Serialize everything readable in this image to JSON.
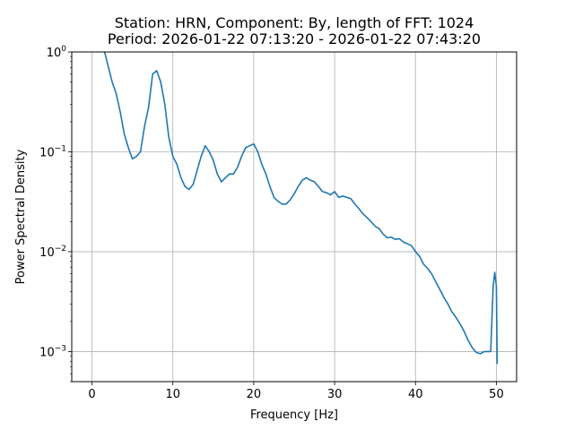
{
  "chart_data": {
    "type": "line",
    "title_line1": "Station: HRN, Component: By, length of FFT: 1024",
    "title_line2": "Period: 2026-01-22 07:13:20 - 2026-01-22 07:43:20",
    "xlabel": "Frequency [Hz]",
    "ylabel": "Power Spectral Density",
    "xlim": [
      -2.5,
      52.5
    ],
    "ylim": [
      0.0005,
      1
    ],
    "yscale": "log",
    "grid": true,
    "x_ticks": [
      {
        "value": 0,
        "label": "0"
      },
      {
        "value": 10,
        "label": "10"
      },
      {
        "value": 20,
        "label": "20"
      },
      {
        "value": 30,
        "label": "30"
      },
      {
        "value": 40,
        "label": "40"
      },
      {
        "value": 50,
        "label": "50"
      }
    ],
    "y_ticks": [
      {
        "value": 1,
        "label": "10^0",
        "base": "10",
        "exp": "0"
      },
      {
        "value": 0.1,
        "label": "10^-1",
        "base": "10",
        "exp": "−1"
      },
      {
        "value": 0.01,
        "label": "10^-2",
        "base": "10",
        "exp": "−2"
      },
      {
        "value": 0.001,
        "label": "10^-3",
        "base": "10",
        "exp": "−3"
      }
    ],
    "line_color": "#1f77b4",
    "series": [
      {
        "x": [
          1.5,
          2.0,
          2.5,
          3.0,
          3.5,
          4.0,
          4.5,
          5.0,
          5.5,
          6.0,
          6.5,
          7.0,
          7.5,
          8.0,
          8.5,
          9.0,
          9.5,
          10.0,
          10.5,
          11.0,
          11.5,
          12.0,
          12.5,
          13.0,
          13.5,
          14.0,
          14.5,
          15.0,
          15.5,
          16.0,
          16.5,
          17.0,
          17.5,
          18.0,
          18.5,
          19.0,
          19.5,
          20.0,
          20.5,
          21.0,
          21.5,
          22.0,
          22.5,
          23.0,
          23.5,
          24.0,
          24.5,
          25.0,
          25.5,
          26.0,
          26.5,
          27.0,
          27.5,
          28.0,
          28.5,
          29.0,
          29.5,
          30.0,
          30.5,
          31.0,
          31.5,
          32.0,
          32.5,
          33.0,
          33.5,
          34.0,
          34.5,
          35.0,
          35.5,
          36.0,
          36.5,
          37.0,
          37.5,
          38.0,
          38.5,
          39.0,
          39.5,
          40.0,
          40.5,
          41.0,
          41.5,
          42.0,
          42.5,
          43.0,
          43.5,
          44.0,
          44.5,
          45.0,
          45.5,
          46.0,
          46.5,
          47.0,
          47.5,
          48.0,
          48.5,
          49.0,
          49.3,
          49.6,
          49.8,
          50.0,
          50.1
        ],
        "y": [
          1.05,
          0.72,
          0.5,
          0.38,
          0.25,
          0.15,
          0.11,
          0.085,
          0.09,
          0.1,
          0.18,
          0.28,
          0.6,
          0.65,
          0.5,
          0.3,
          0.14,
          0.09,
          0.075,
          0.055,
          0.045,
          0.042,
          0.047,
          0.065,
          0.09,
          0.115,
          0.1,
          0.082,
          0.06,
          0.05,
          0.055,
          0.06,
          0.06,
          0.07,
          0.09,
          0.11,
          0.115,
          0.12,
          0.1,
          0.075,
          0.06,
          0.045,
          0.035,
          0.032,
          0.03,
          0.03,
          0.033,
          0.038,
          0.045,
          0.052,
          0.055,
          0.052,
          0.05,
          0.045,
          0.04,
          0.039,
          0.037,
          0.04,
          0.035,
          0.036,
          0.035,
          0.034,
          0.03,
          0.027,
          0.024,
          0.022,
          0.02,
          0.018,
          0.017,
          0.015,
          0.0138,
          0.014,
          0.0133,
          0.0135,
          0.0125,
          0.012,
          0.0115,
          0.01,
          0.009,
          0.0075,
          0.0068,
          0.006,
          0.005,
          0.0042,
          0.0035,
          0.003,
          0.0025,
          0.0022,
          0.0019,
          0.0016,
          0.0013,
          0.0011,
          0.00098,
          0.00095,
          0.001,
          0.001,
          0.001,
          0.0045,
          0.0062,
          0.0045,
          0.00075
        ]
      }
    ]
  }
}
